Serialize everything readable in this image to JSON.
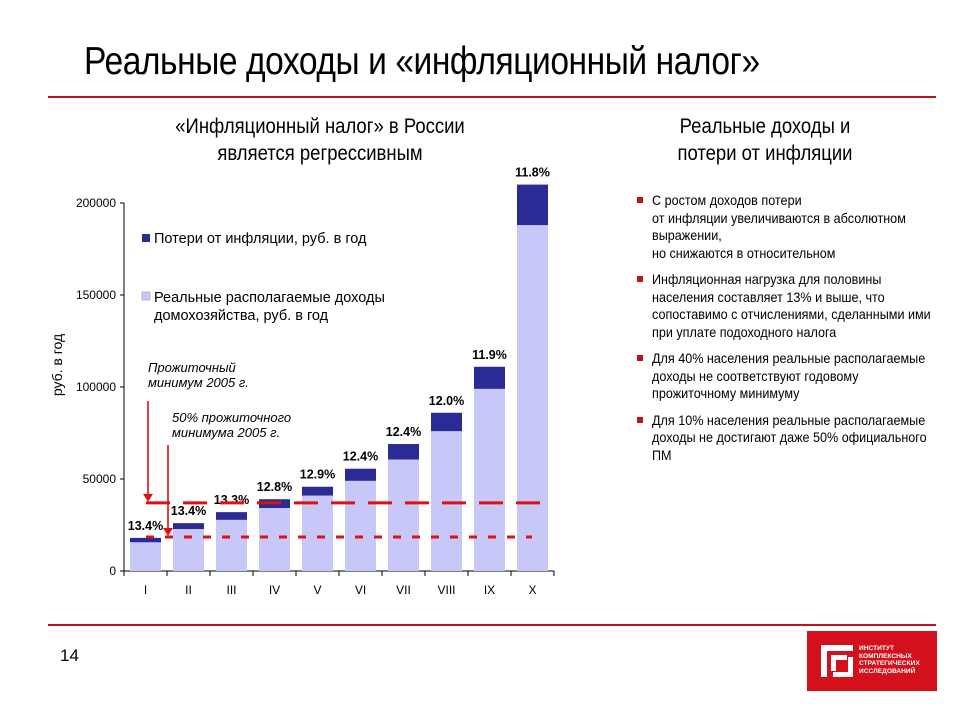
{
  "title": "Реальные доходы и «инфляционный налог»",
  "left_subtitle": [
    "«Инфляционный налог» в России",
    "является регрессивным"
  ],
  "right_subtitle": [
    "Реальные доходы и",
    "потери от инфляции"
  ],
  "bullets": [
    "С ростом доходов потери\nот инфляции увеличиваются в абсолютном выражении,\nно снижаются в относительном",
    "Инфляционная нагрузка для половины населения составляет 13% и выше, что сопоставимо с отчислениями, сделанными ими при уплате подоходного налога",
    "Для 40% населения реальные располагаемые доходы не соответствуют годовому прожиточному минимуму",
    "Для 10% населения реальные располагаемые доходы не достигают даже 50% официального ПМ"
  ],
  "page_number": "14",
  "logo_text": "ИНСТИТУТ\nКОМПЛЕКСНЫХ\nСТРАТЕГИЧЕСКИХ\nИССЛЕДОВАНИЙ",
  "colors": {
    "accent": "#c0121e",
    "real_income": "#c8c8f8",
    "losses": "#2b2b96"
  },
  "chart_data": {
    "type": "bar",
    "stacked": true,
    "categories": [
      "I",
      "II",
      "III",
      "IV",
      "V",
      "VI",
      "VII",
      "VIII",
      "IX",
      "X"
    ],
    "series": [
      {
        "name": "Реальные располагаемые доходы домохозяйства, руб. в год",
        "values": [
          15600,
          22800,
          27800,
          34200,
          41000,
          49000,
          60600,
          76000,
          99000,
          188000
        ]
      },
      {
        "name": "Потери от инфляции, руб. в год",
        "values": [
          2400,
          3200,
          4200,
          4800,
          4800,
          6600,
          8400,
          10000,
          12000,
          22000
        ]
      }
    ],
    "data_labels": [
      "13.4%",
      "13.4%",
      "13.3%",
      "12.8%",
      "12.9%",
      "12.4%",
      "12.4%",
      "12.0%",
      "11.9%",
      "11.8%"
    ],
    "ylabel": "руб. в год",
    "ylim": [
      0,
      200000
    ],
    "yticks": [
      0,
      50000,
      100000,
      150000,
      200000
    ],
    "reference_lines": [
      {
        "label": "Прожиточный\nминимум 2005 г.",
        "value": 37000,
        "style": "dashed"
      },
      {
        "label": "50% прожиточного\nминимума 2005 г.",
        "value": 18500,
        "style": "dotted"
      }
    ],
    "legend_position": "top-left",
    "grid": false
  }
}
